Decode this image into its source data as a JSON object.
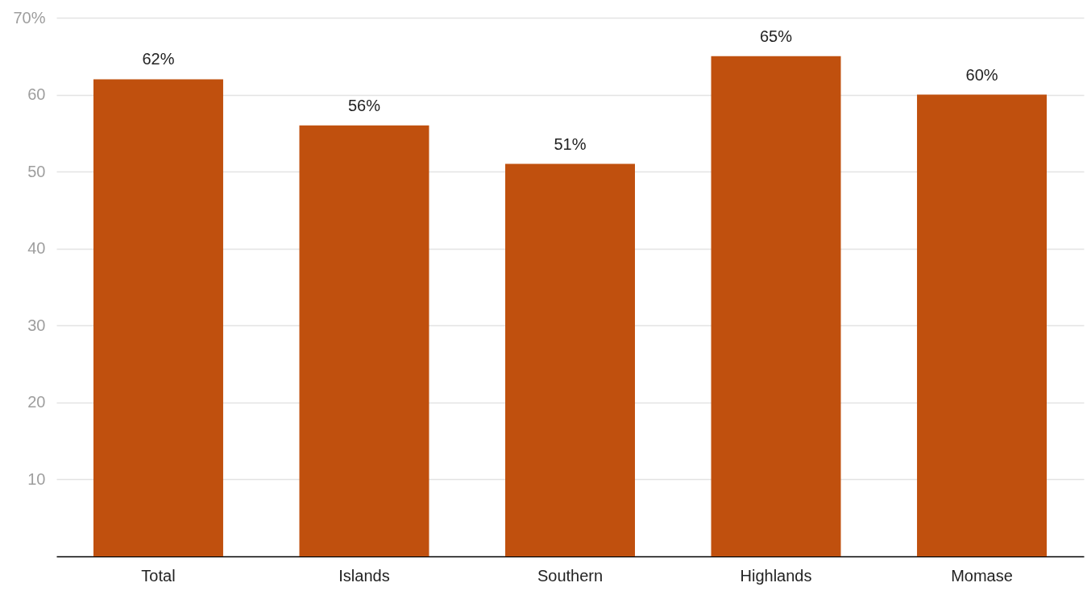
{
  "chart_data": {
    "type": "bar",
    "categories": [
      "Total",
      "Islands",
      "Southern",
      "Highlands",
      "Momase"
    ],
    "values": [
      62,
      56,
      51,
      65,
      60
    ],
    "value_labels": [
      "62%",
      "56%",
      "51%",
      "65%",
      "60%"
    ],
    "color": "#c0500e",
    "ylim": [
      0,
      70
    ],
    "yticks": [
      10,
      20,
      30,
      40,
      50,
      60,
      {
        "value": 70,
        "label": "70%"
      }
    ],
    "grid": "y"
  }
}
